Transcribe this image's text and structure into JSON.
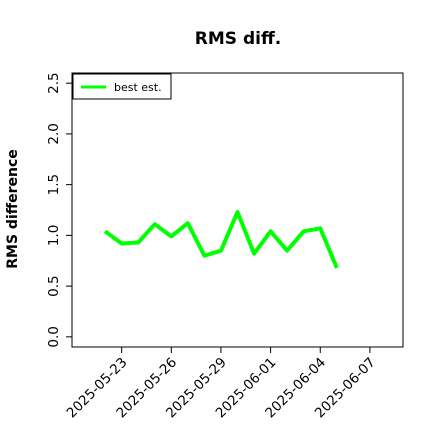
{
  "chart_data": {
    "type": "line",
    "title": "RMS diff.",
    "xlabel": "",
    "ylabel": "RMS difference",
    "x_ticks": [
      "2025-05-23",
      "2025-05-26",
      "2025-05-29",
      "2025-06-01",
      "2025-06-04",
      "2025-06-07"
    ],
    "y_ticks": [
      "0.0",
      "0.5",
      "1.0",
      "1.5",
      "2.0",
      "2.5"
    ],
    "xlim": [
      "2025-05-20",
      "2025-06-09"
    ],
    "ylim": [
      -0.1,
      2.6
    ],
    "grid": false,
    "legend_position": "top-left",
    "series": [
      {
        "name": "best est.",
        "color": "#00ff00",
        "x": [
          "2025-05-22",
          "2025-05-23",
          "2025-05-24",
          "2025-05-25",
          "2025-05-26",
          "2025-05-27",
          "2025-05-28",
          "2025-05-29",
          "2025-05-30",
          "2025-05-31",
          "2025-06-01",
          "2025-06-02",
          "2025-06-03",
          "2025-06-04",
          "2025-06-05"
        ],
        "y": [
          1.04,
          0.92,
          0.93,
          1.11,
          0.99,
          1.12,
          0.8,
          0.85,
          1.23,
          0.82,
          1.04,
          0.85,
          1.04,
          1.07,
          0.68
        ]
      }
    ]
  }
}
